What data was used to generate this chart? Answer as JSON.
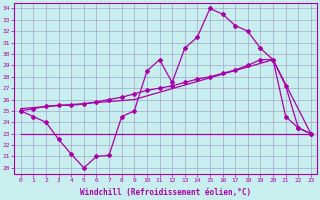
{
  "xlabel": "Windchill (Refroidissement éolien,°C)",
  "ylabel": "",
  "bg_color": "#c8eef0",
  "line_color": "#aa00aa",
  "grid_color": "#9999bb",
  "xlim": [
    -0.5,
    23.5
  ],
  "ylim": [
    19.5,
    34.5
  ],
  "xticks": [
    0,
    1,
    2,
    3,
    4,
    5,
    6,
    7,
    8,
    9,
    10,
    11,
    12,
    13,
    14,
    15,
    16,
    17,
    18,
    19,
    20,
    21,
    22,
    23
  ],
  "yticks": [
    20,
    21,
    22,
    23,
    24,
    25,
    26,
    27,
    28,
    29,
    30,
    31,
    32,
    33,
    34
  ],
  "line1_x": [
    0,
    1,
    2,
    3,
    4,
    5,
    6,
    7,
    8,
    9,
    10,
    11,
    12,
    13,
    14,
    15,
    16,
    17,
    18,
    19,
    20,
    21,
    22,
    23
  ],
  "line1_y": [
    25.0,
    24.5,
    24.0,
    22.5,
    21.2,
    20.0,
    21.0,
    21.1,
    24.5,
    25.0,
    28.5,
    29.5,
    27.5,
    30.5,
    31.5,
    34.0,
    33.5,
    32.5,
    32.0,
    30.5,
    29.5,
    27.2,
    23.5,
    23.0
  ],
  "line2_x": [
    0,
    1,
    2,
    3,
    4,
    5,
    6,
    7,
    8,
    9,
    10,
    11,
    12,
    13,
    14,
    15,
    16,
    17,
    18,
    19,
    20,
    21,
    22,
    23
  ],
  "line2_y": [
    25.0,
    25.2,
    25.4,
    25.5,
    25.5,
    25.6,
    25.8,
    26.0,
    26.2,
    26.5,
    26.8,
    27.0,
    27.2,
    27.5,
    27.8,
    28.0,
    28.3,
    28.6,
    29.0,
    29.5,
    29.5,
    24.5,
    23.5,
    23.0
  ],
  "line3_x": [
    0,
    9,
    20,
    23
  ],
  "line3_y": [
    25.2,
    26.0,
    29.5,
    23.0
  ],
  "line4_x": [
    0,
    23
  ],
  "line4_y": [
    23.0,
    23.0
  ],
  "marker": "D",
  "markersize": 2.0,
  "linewidth": 0.9,
  "tick_fontsize": 4.5,
  "label_fontsize": 5.5
}
